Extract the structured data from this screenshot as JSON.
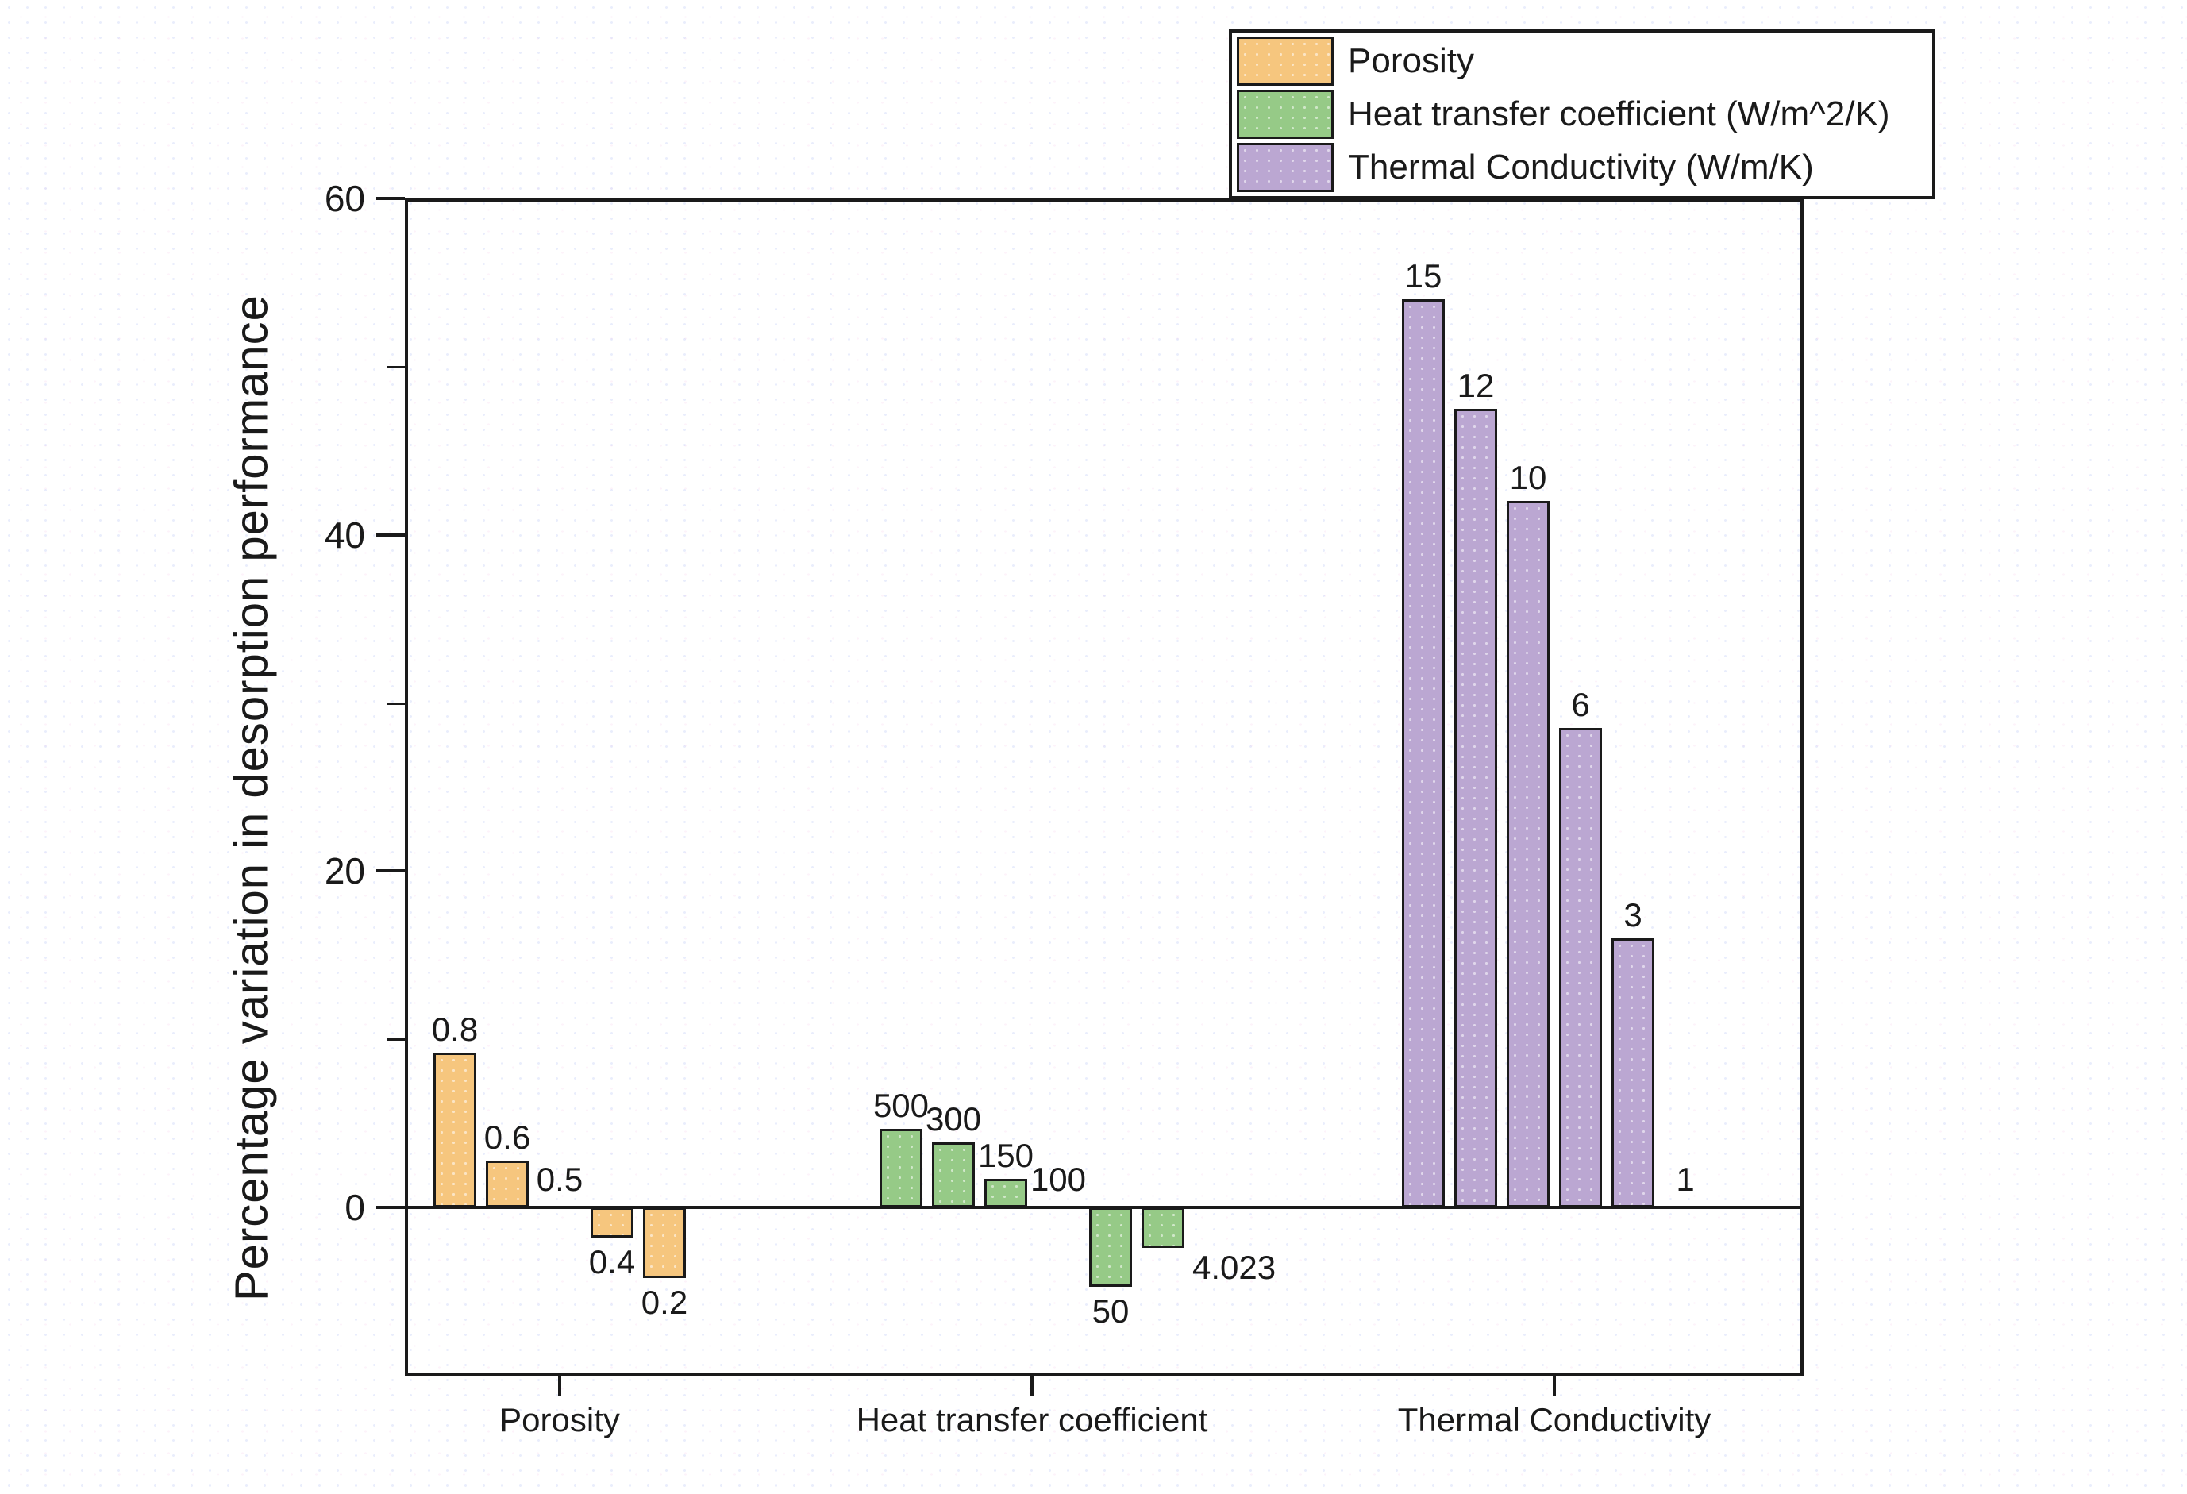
{
  "figure": {
    "background": "#ffffff",
    "text_color": "#1a1a1a"
  },
  "legend": {
    "position": "top-right",
    "entries": [
      {
        "label": "Porosity",
        "color": "#F6C67E"
      },
      {
        "label": "Heat transfer coefficient (W/m^2/K)",
        "color": "#96CA87"
      },
      {
        "label": "Thermal Conductivity (W/m/K)",
        "color": "#BBA7D2"
      }
    ]
  },
  "chart_data": {
    "type": "bar",
    "title": "",
    "xlabel": "",
    "ylabel": "Percentage variation in desorption performance",
    "ylim": [
      -10,
      60
    ],
    "y_major_ticks": [
      0,
      20,
      40,
      60
    ],
    "y_minor_ticks": [
      10,
      30,
      50
    ],
    "grid": false,
    "bar_value_unit": "percent variation",
    "groups": [
      {
        "label": "Porosity",
        "series": "Porosity",
        "color": "#F6C67E",
        "bars": [
          {
            "label": "0.8",
            "value": 9.2
          },
          {
            "label": "0.6",
            "value": 2.8
          },
          {
            "label": "0.5",
            "value": 0
          },
          {
            "label": "0.4",
            "value": -1.8
          },
          {
            "label": "0.2",
            "value": -4.2
          }
        ]
      },
      {
        "label": "Heat transfer coefficient",
        "series": "Heat transfer coefficient (W/m^2/K)",
        "color": "#96CA87",
        "bars": [
          {
            "label": "500",
            "value": 4.7
          },
          {
            "label": "300",
            "value": 3.9
          },
          {
            "label": "150",
            "value": 1.7
          },
          {
            "label": "100",
            "value": 0
          },
          {
            "label": "50",
            "value": -4.7
          },
          {
            "label": "4.023",
            "value": -2.4,
            "label_pos": "right"
          }
        ]
      },
      {
        "label": "Thermal Conductivity",
        "series": "Thermal Conductivity (W/m/K)",
        "color": "#BBA7D2",
        "bars": [
          {
            "label": "15",
            "value": 54
          },
          {
            "label": "12",
            "value": 47.5
          },
          {
            "label": "10",
            "value": 42
          },
          {
            "label": "6",
            "value": 28.5
          },
          {
            "label": "3",
            "value": 16
          },
          {
            "label": "1",
            "value": 0
          }
        ]
      }
    ]
  }
}
